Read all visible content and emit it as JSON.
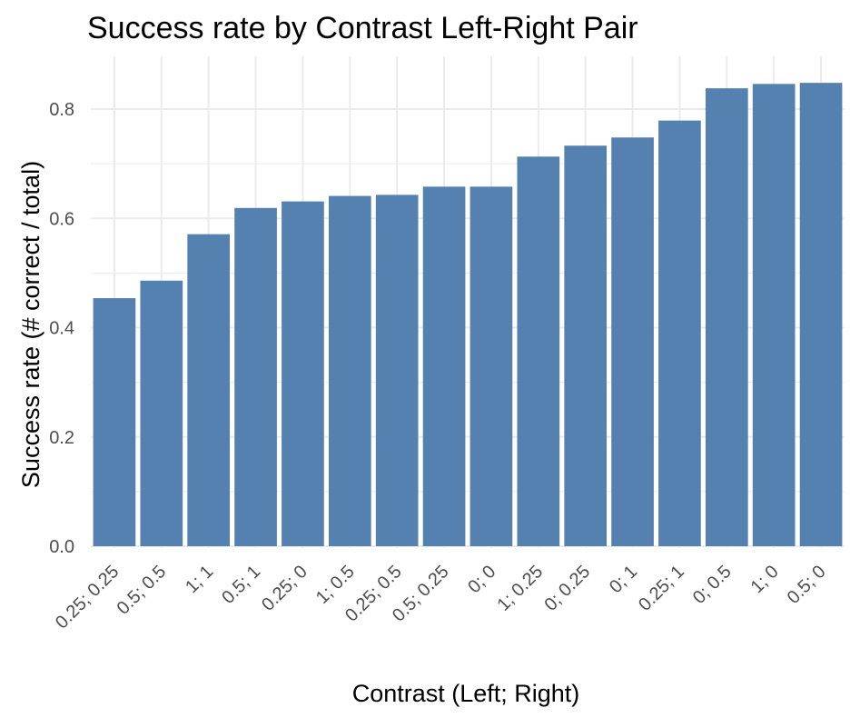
{
  "chart_data": {
    "type": "bar",
    "title": "Success rate by Contrast Left-Right Pair",
    "xlabel": "Contrast (Left; Right)",
    "ylabel": "Success rate (# correct / total)",
    "categories": [
      "0.25; 0.25",
      "0.5; 0.5",
      "1; 1",
      "0.5; 1",
      "0.25; 0",
      "1; 0.5",
      "0.25; 0.5",
      "0.5; 0.25",
      "0; 0",
      "1; 0.25",
      "0; 0.25",
      "0; 1",
      "0.25; 1",
      "0; 0.5",
      "1; 0",
      "0.5; 0"
    ],
    "values": [
      0.454,
      0.486,
      0.571,
      0.619,
      0.631,
      0.641,
      0.643,
      0.658,
      0.658,
      0.713,
      0.733,
      0.748,
      0.779,
      0.838,
      0.846,
      0.848
    ],
    "ylim": [
      0,
      0.88
    ],
    "yticks": [
      0.0,
      0.2,
      0.4,
      0.6,
      0.8
    ],
    "ytick_labels": [
      "0.0",
      "0.2",
      "0.4",
      "0.6",
      "0.8"
    ],
    "bar_color": "#5581b0",
    "grid_color": "#ebebeb",
    "grid": true
  }
}
